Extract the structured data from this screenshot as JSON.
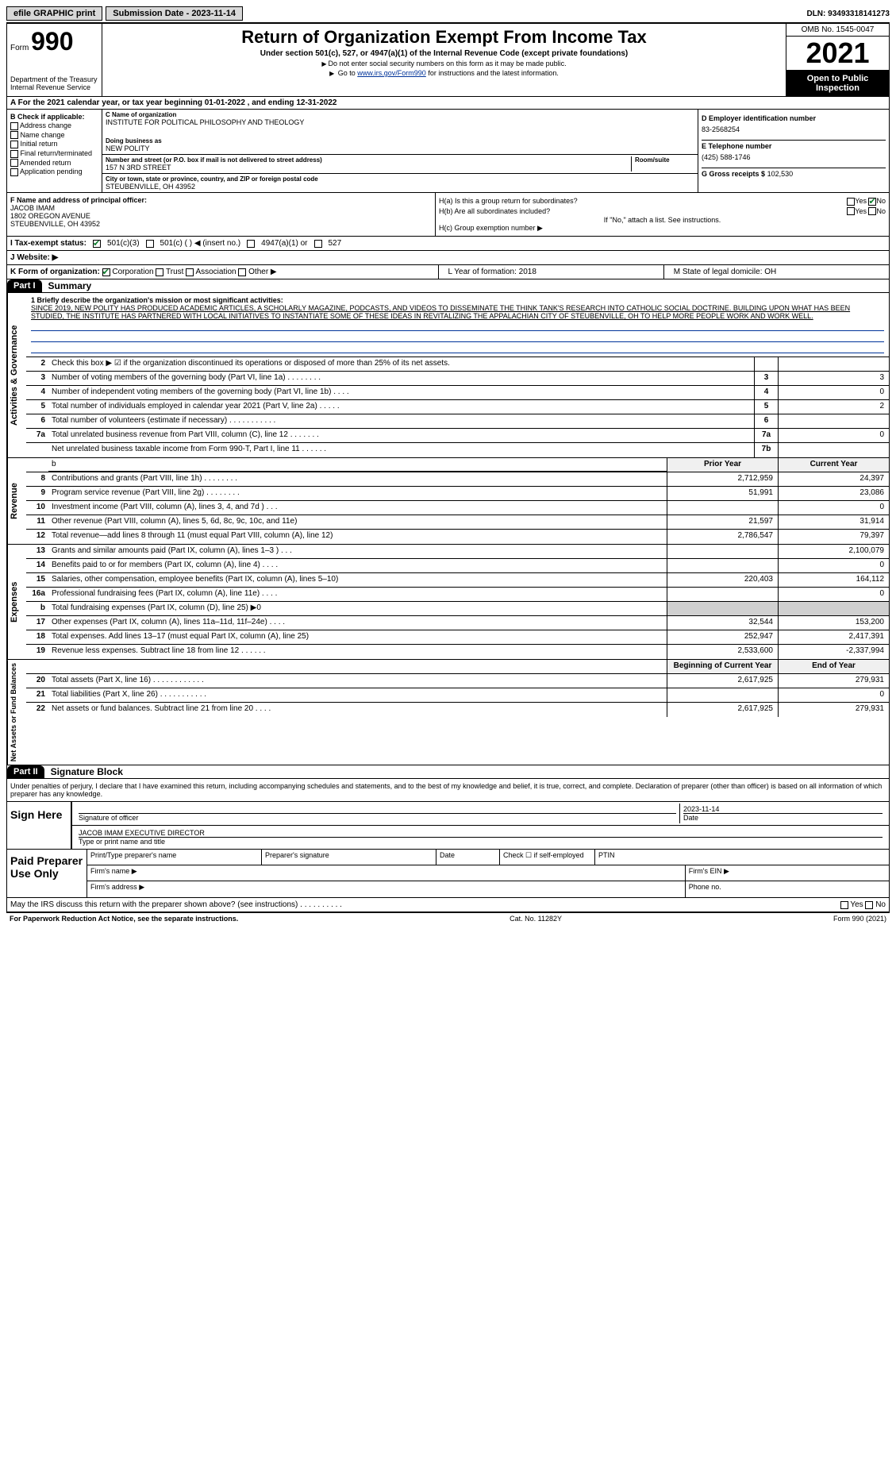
{
  "topbar": {
    "efile": "efile GRAPHIC print",
    "submission": "Submission Date - 2023-11-14",
    "dln": "DLN: 93493318141273"
  },
  "header": {
    "form_prefix": "Form",
    "form_num": "990",
    "title": "Return of Organization Exempt From Income Tax",
    "subtitle": "Under section 501(c), 527, or 4947(a)(1) of the Internal Revenue Code (except private foundations)",
    "note1": "Do not enter social security numbers on this form as it may be made public.",
    "note2_prefix": "Go to ",
    "note2_link": "www.irs.gov/Form990",
    "note2_suffix": " for instructions and the latest information.",
    "dept": "Department of the Treasury",
    "irs": "Internal Revenue Service",
    "omb": "OMB No. 1545-0047",
    "year": "2021",
    "open": "Open to Public Inspection"
  },
  "row_a": "A  For the 2021 calendar year, or tax year beginning 01-01-2022    , and ending 12-31-2022",
  "col_b": {
    "label": "B Check if applicable:",
    "items": [
      "Address change",
      "Name change",
      "Initial return",
      "Final return/terminated",
      "Amended return",
      "Application pending"
    ]
  },
  "col_c": {
    "name_lbl": "C Name of organization",
    "name": "INSTITUTE FOR POLITICAL PHILOSOPHY AND THEOLOGY",
    "dba_lbl": "Doing business as",
    "dba": "NEW POLITY",
    "addr_lbl": "Number and street (or P.O. box if mail is not delivered to street address)",
    "addr": "157 N 3RD STREET",
    "room_lbl": "Room/suite",
    "city_lbl": "City or town, state or province, country, and ZIP or foreign postal code",
    "city": "STEUBENVILLE, OH  43952"
  },
  "col_d": {
    "ein_lbl": "D Employer identification number",
    "ein": "83-2568254",
    "tel_lbl": "E Telephone number",
    "tel": "(425) 588-1746",
    "gross_lbl": "G Gross receipts $",
    "gross": "102,530"
  },
  "col_f": {
    "lbl": "F Name and address of principal officer:",
    "name": "JACOB IMAM",
    "addr1": "1802 OREGON AVENUE",
    "addr2": "STEUBENVILLE, OH  43952"
  },
  "col_h": {
    "ha": "H(a)  Is this a group return for subordinates?",
    "hb": "H(b)  Are all subordinates included?",
    "hb_note": "If \"No,\" attach a list. See instructions.",
    "hc": "H(c)  Group exemption number ▶",
    "yes": "Yes",
    "no": "No"
  },
  "row_i": {
    "lbl": "I   Tax-exempt status:",
    "o1": "501(c)(3)",
    "o2": "501(c) (  ) ◀ (insert no.)",
    "o3": "4947(a)(1) or",
    "o4": "527"
  },
  "row_j": {
    "lbl": "J   Website: ▶"
  },
  "row_k": {
    "lbl": "K Form of organization:",
    "corp": "Corporation",
    "trust": "Trust",
    "assoc": "Association",
    "other": "Other ▶",
    "l": "L Year of formation: 2018",
    "m": "M State of legal domicile: OH"
  },
  "part1": {
    "hdr": "Part I",
    "title": "Summary"
  },
  "mission": {
    "label": "1  Briefly describe the organization's mission or most significant activities:",
    "text": "SINCE 2019, NEW POLITY HAS PRODUCED ACADEMIC ARTICLES, A SCHOLARLY MAGAZINE, PODCASTS, AND VIDEOS TO DISSEMINATE THE THINK TANK'S RESEARCH INTO CATHOLIC SOCIAL DOCTRINE. BUILDING UPON WHAT HAS BEEN STUDIED, THE INSTITUTE HAS PARTNERED WITH LOCAL INITIATIVES TO INSTANTIATE SOME OF THESE IDEAS IN REVITALIZING THE APPALACHIAN CITY OF STEUBENVILLE, OH TO HELP MORE PEOPLE WORK AND WORK WELL."
  },
  "gov_lines": [
    {
      "n": "2",
      "d": "Check this box ▶ ☑ if the organization discontinued its operations or disposed of more than 25% of its net assets.",
      "box": "",
      "v": ""
    },
    {
      "n": "3",
      "d": "Number of voting members of the governing body (Part VI, line 1a)  .   .   .   .   .   .   .   .",
      "box": "3",
      "v": "3"
    },
    {
      "n": "4",
      "d": "Number of independent voting members of the governing body (Part VI, line 1b)   .   .   .   .",
      "box": "4",
      "v": "0"
    },
    {
      "n": "5",
      "d": "Total number of individuals employed in calendar year 2021 (Part V, line 2a)   .   .   .   .   .",
      "box": "5",
      "v": "2"
    },
    {
      "n": "6",
      "d": "Total number of volunteers (estimate if necessary)   .   .   .   .   .   .   .   .   .   .   .",
      "box": "6",
      "v": ""
    },
    {
      "n": "7a",
      "d": "Total unrelated business revenue from Part VIII, column (C), line 12   .   .   .   .   .   .   .",
      "box": "7a",
      "v": "0"
    },
    {
      "n": "",
      "d": "Net unrelated business taxable income from Form 990-T, Part I, line 11   .   .   .   .   .   .",
      "box": "7b",
      "v": ""
    }
  ],
  "rev_hdr": {
    "prior": "Prior Year",
    "curr": "Current Year"
  },
  "rev_lines": [
    {
      "n": "8",
      "d": "Contributions and grants (Part VIII, line 1h)   .   .   .   .   .   .   .   .",
      "p": "2,712,959",
      "c": "24,397"
    },
    {
      "n": "9",
      "d": "Program service revenue (Part VIII, line 2g)   .   .   .   .   .   .   .   .",
      "p": "51,991",
      "c": "23,086"
    },
    {
      "n": "10",
      "d": "Investment income (Part VIII, column (A), lines 3, 4, and 7d )   .   .   .",
      "p": "",
      "c": "0"
    },
    {
      "n": "11",
      "d": "Other revenue (Part VIII, column (A), lines 5, 6d, 8c, 9c, 10c, and 11e)",
      "p": "21,597",
      "c": "31,914"
    },
    {
      "n": "12",
      "d": "Total revenue—add lines 8 through 11 (must equal Part VIII, column (A), line 12)",
      "p": "2,786,547",
      "c": "79,397"
    }
  ],
  "exp_lines": [
    {
      "n": "13",
      "d": "Grants and similar amounts paid (Part IX, column (A), lines 1–3 )   .   .   .",
      "p": "",
      "c": "2,100,079"
    },
    {
      "n": "14",
      "d": "Benefits paid to or for members (Part IX, column (A), line 4)   .   .   .   .",
      "p": "",
      "c": "0"
    },
    {
      "n": "15",
      "d": "Salaries, other compensation, employee benefits (Part IX, column (A), lines 5–10)",
      "p": "220,403",
      "c": "164,112"
    },
    {
      "n": "16a",
      "d": "Professional fundraising fees (Part IX, column (A), line 11e)   .   .   .   .",
      "p": "",
      "c": "0"
    },
    {
      "n": "b",
      "d": "Total fundraising expenses (Part IX, column (D), line 25) ▶0",
      "p": "",
      "c": "",
      "shade": true
    },
    {
      "n": "17",
      "d": "Other expenses (Part IX, column (A), lines 11a–11d, 11f–24e)   .   .   .   .",
      "p": "32,544",
      "c": "153,200"
    },
    {
      "n": "18",
      "d": "Total expenses. Add lines 13–17 (must equal Part IX, column (A), line 25)",
      "p": "252,947",
      "c": "2,417,391"
    },
    {
      "n": "19",
      "d": "Revenue less expenses. Subtract line 18 from line 12   .   .   .   .   .   .",
      "p": "2,533,600",
      "c": "-2,337,994"
    }
  ],
  "net_hdr": {
    "prior": "Beginning of Current Year",
    "curr": "End of Year"
  },
  "net_lines": [
    {
      "n": "20",
      "d": "Total assets (Part X, line 16)   .   .   .   .   .   .   .   .   .   .   .   .",
      "p": "2,617,925",
      "c": "279,931"
    },
    {
      "n": "21",
      "d": "Total liabilities (Part X, line 26)   .   .   .   .   .   .   .   .   .   .   .",
      "p": "",
      "c": "0"
    },
    {
      "n": "22",
      "d": "Net assets or fund balances. Subtract line 21 from line 20   .   .   .   .",
      "p": "2,617,925",
      "c": "279,931"
    }
  ],
  "part2": {
    "hdr": "Part II",
    "title": "Signature Block"
  },
  "sig": {
    "intro": "Under penalties of perjury, I declare that I have examined this return, including accompanying schedules and statements, and to the best of my knowledge and belief, it is true, correct, and complete. Declaration of preparer (other than officer) is based on all information of which preparer has any knowledge.",
    "sign_here": "Sign Here",
    "sig_officer": "Signature of officer",
    "date": "2023-11-14",
    "date_lbl": "Date",
    "name": "JACOB IMAM  EXECUTIVE DIRECTOR",
    "name_lbl": "Type or print name and title"
  },
  "paid": {
    "label": "Paid Preparer Use Only",
    "h1": "Print/Type preparer's name",
    "h2": "Preparer's signature",
    "h3": "Date",
    "h4": "Check ☐ if self-employed",
    "h5": "PTIN",
    "firm_name": "Firm's name   ▶",
    "firm_ein": "Firm's EIN ▶",
    "firm_addr": "Firm's address ▶",
    "phone": "Phone no."
  },
  "discuss": {
    "q": "May the IRS discuss this return with the preparer shown above? (see instructions)   .   .   .   .   .   .   .   .   .   .",
    "yes": "Yes",
    "no": "No"
  },
  "footer": {
    "l": "For Paperwork Reduction Act Notice, see the separate instructions.",
    "m": "Cat. No. 11282Y",
    "r": "Form 990 (2021)"
  },
  "vtabs": {
    "gov": "Activities & Governance",
    "rev": "Revenue",
    "exp": "Expenses",
    "net": "Net Assets or Fund Balances"
  }
}
